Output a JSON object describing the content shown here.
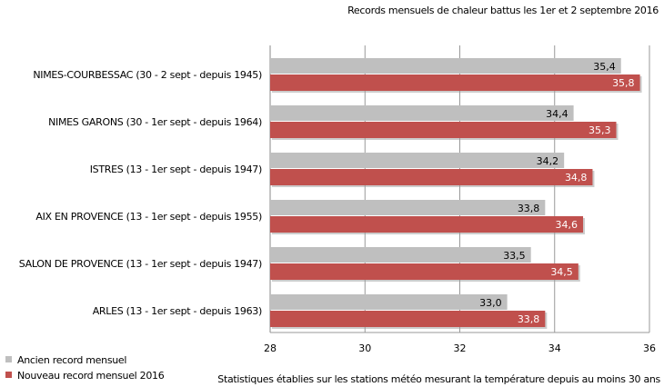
{
  "title": "Records mensuels de chaleur battus les 1er et 2 septembre 2016",
  "footnote": "Statistiques établies sur les stations météo mesurant la température depuis au moins 30 ans",
  "chart_data": {
    "type": "bar",
    "orientation": "horizontal",
    "title": "Records mensuels de chaleur battus les 1er et 2 septembre 2016",
    "categories": [
      "NIMES-COURBESSAC (30 - 2 sept - depuis 1945)",
      "NIMES GARONS (30 - 1er sept - depuis 1964)",
      "ISTRES (13 - 1er sept - depuis 1947)",
      "AIX EN PROVENCE (13 - 1er sept - depuis 1955)",
      "SALON DE PROVENCE (13 - 1er sept - depuis 1947)",
      "ARLES (13 - 1er sept - depuis 1963)"
    ],
    "series": [
      {
        "name": "Ancien record mensuel",
        "color": "#bfbfbf",
        "values": [
          35.4,
          34.4,
          34.2,
          33.8,
          33.5,
          33.0
        ],
        "labels": [
          "35,4",
          "34,4",
          "34,2",
          "33,8",
          "33,5",
          "33,0"
        ]
      },
      {
        "name": "Nouveau record mensuel 2016",
        "color": "#c0504d",
        "values": [
          35.8,
          35.3,
          34.8,
          34.6,
          34.5,
          33.8
        ],
        "labels": [
          "35,8",
          "35,3",
          "34,8",
          "34,6",
          "34,5",
          "33,8"
        ]
      }
    ],
    "xlim": [
      28,
      36
    ],
    "xticks": [
      "28",
      "30",
      "32",
      "34",
      "36"
    ],
    "xtick_values": [
      28,
      30,
      32,
      34,
      36
    ],
    "grid": true,
    "legend_placement": "bottom-left"
  }
}
